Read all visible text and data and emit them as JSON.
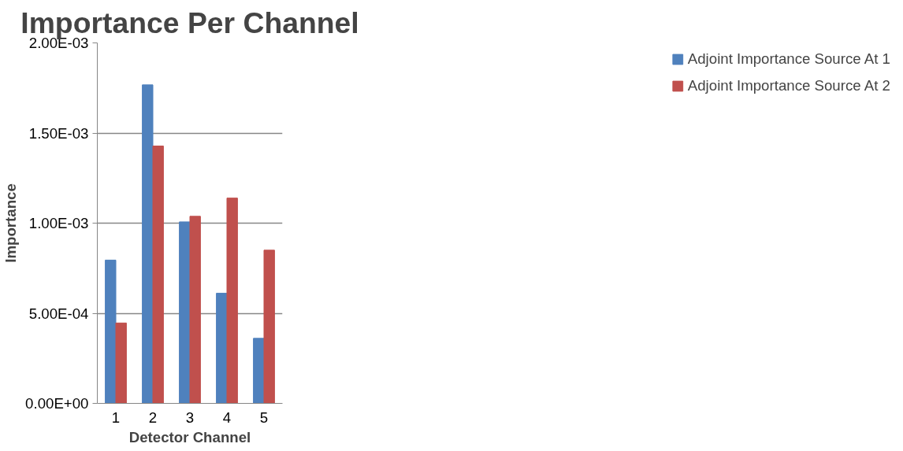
{
  "chart_data": {
    "type": "bar",
    "title": "Importance Per Channel",
    "xlabel": "Detector Channel",
    "ylabel": "Importance",
    "categories": [
      "1",
      "2",
      "3",
      "4",
      "5"
    ],
    "series": [
      {
        "name": "Adjoint Importance Source At 1",
        "color": "#4f81bd",
        "values": [
          0.000795,
          0.001767,
          0.001007,
          0.000611,
          0.000361
        ]
      },
      {
        "name": "Adjoint Importance Source At 2",
        "color": "#c0504d",
        "values": [
          0.000446,
          0.001428,
          0.001038,
          0.001139,
          0.00085
        ]
      }
    ],
    "ylim": [
      0,
      0.002
    ],
    "yticks": [
      {
        "value": 0,
        "label": "0.00E+00"
      },
      {
        "value": 0.0005,
        "label": "5.00E-04"
      },
      {
        "value": 0.001,
        "label": "1.00E-03"
      },
      {
        "value": 0.0015,
        "label": "1.50E-03"
      },
      {
        "value": 0.002,
        "label": "2.00E-03"
      }
    ],
    "grid": "y",
    "legend": "right"
  }
}
